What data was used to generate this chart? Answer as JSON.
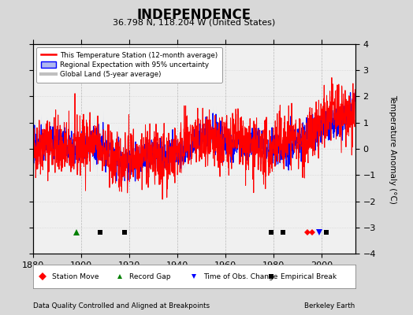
{
  "title": "INDEPENDENCE",
  "subtitle": "36.798 N, 118.204 W (United States)",
  "ylabel": "Temperature Anomaly (°C)",
  "xlabel_note": "Data Quality Controlled and Aligned at Breakpoints",
  "attribution": "Berkeley Earth",
  "xlim": [
    1880,
    2014
  ],
  "ylim": [
    -4,
    4
  ],
  "yticks": [
    -4,
    -3,
    -2,
    -1,
    0,
    1,
    2,
    3,
    4
  ],
  "xticks": [
    1880,
    1900,
    1920,
    1940,
    1960,
    1980,
    2000
  ],
  "bg_color": "#d8d8d8",
  "plot_bg_color": "#f0f0f0",
  "station_color": "red",
  "regional_color": "blue",
  "uncertainty_color": "#b0b8ee",
  "global_color": "#c0c0c0",
  "station_moves": [
    1994,
    1996
  ],
  "record_gaps": [
    1898
  ],
  "obs_changes": [
    1999
  ],
  "empirical_breaks": [
    1908,
    1918,
    1979,
    1984,
    2002
  ],
  "seed": 42
}
